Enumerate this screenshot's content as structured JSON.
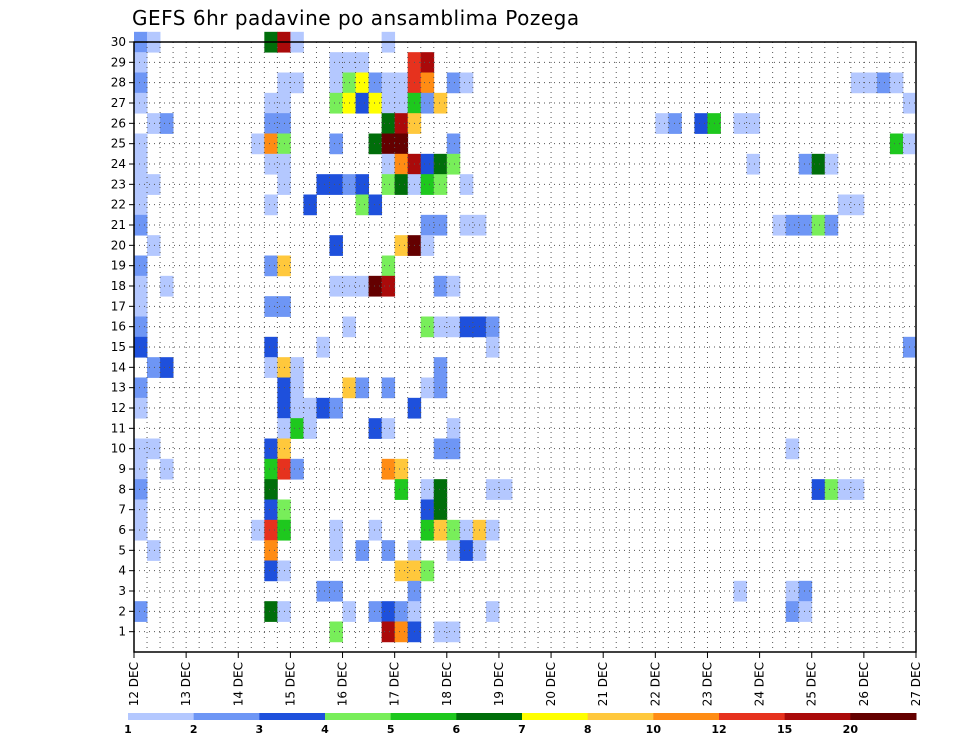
{
  "chart_data": {
    "type": "heatmap",
    "title": "GEFS 6hr padavine po ansamblima Pozega",
    "x_tick_labels": [
      "12 DEC",
      "13 DEC",
      "14 DEC",
      "15 DEC",
      "16 DEC",
      "17 DEC",
      "18 DEC",
      "19 DEC",
      "20 DEC",
      "21 DEC",
      "22 DEC",
      "23 DEC",
      "24 DEC",
      "25 DEC",
      "26 DEC",
      "27 DEC"
    ],
    "y_tick_labels": [
      "1",
      "2",
      "3",
      "4",
      "5",
      "6",
      "7",
      "8",
      "9",
      "10",
      "11",
      "12",
      "13",
      "14",
      "15",
      "16",
      "17",
      "18",
      "19",
      "20",
      "21",
      "22",
      "23",
      "24",
      "25",
      "26",
      "27",
      "28",
      "29",
      "30"
    ],
    "x_steps_6h": 60,
    "y_members": [
      0,
      30
    ],
    "grid": true,
    "legend_position": "bottom",
    "colorbar": {
      "labels": [
        "1",
        "2",
        "3",
        "4",
        "5",
        "6",
        "7",
        "8",
        "10",
        "12",
        "15",
        "20"
      ],
      "colors": [
        "#b4c8ff",
        "#6e96f5",
        "#1e50dc",
        "#78ee5a",
        "#1ec81e",
        "#006e0a",
        "#ffff00",
        "#ffc83c",
        "#ff8c14",
        "#e6321e",
        "#aa0a0a",
        "#640000"
      ]
    },
    "cells": [
      [
        0,
        30,
        2
      ],
      [
        1,
        30,
        1
      ],
      [
        10,
        30,
        6
      ],
      [
        11,
        30,
        11
      ],
      [
        12,
        30,
        1
      ],
      [
        19,
        30,
        1
      ],
      [
        0,
        29,
        1
      ],
      [
        15,
        29,
        1
      ],
      [
        16,
        29,
        1
      ],
      [
        17,
        29,
        1
      ],
      [
        21,
        29,
        10
      ],
      [
        22,
        29,
        11
      ],
      [
        0,
        28,
        2
      ],
      [
        11,
        28,
        1
      ],
      [
        12,
        28,
        1
      ],
      [
        15,
        28,
        1
      ],
      [
        16,
        28,
        4
      ],
      [
        17,
        28,
        7
      ],
      [
        18,
        28,
        2
      ],
      [
        19,
        28,
        1
      ],
      [
        20,
        28,
        1
      ],
      [
        21,
        28,
        10
      ],
      [
        22,
        28,
        9
      ],
      [
        24,
        28,
        2
      ],
      [
        25,
        28,
        1
      ],
      [
        55,
        28,
        1
      ],
      [
        56,
        28,
        1
      ],
      [
        57,
        28,
        2
      ],
      [
        58,
        28,
        1
      ],
      [
        0,
        27,
        1
      ],
      [
        10,
        27,
        1
      ],
      [
        11,
        27,
        1
      ],
      [
        15,
        27,
        4
      ],
      [
        16,
        27,
        7
      ],
      [
        17,
        27,
        3
      ],
      [
        18,
        27,
        7
      ],
      [
        19,
        27,
        1
      ],
      [
        20,
        27,
        1
      ],
      [
        21,
        27,
        5
      ],
      [
        22,
        27,
        2
      ],
      [
        23,
        27,
        8
      ],
      [
        59,
        27,
        1
      ],
      [
        1,
        26,
        1
      ],
      [
        2,
        26,
        2
      ],
      [
        10,
        26,
        2
      ],
      [
        11,
        26,
        2
      ],
      [
        19,
        26,
        6
      ],
      [
        20,
        26,
        11
      ],
      [
        21,
        26,
        8
      ],
      [
        40,
        26,
        1
      ],
      [
        41,
        26,
        2
      ],
      [
        43,
        26,
        3
      ],
      [
        44,
        26,
        5
      ],
      [
        46,
        26,
        1
      ],
      [
        47,
        26,
        1
      ],
      [
        0,
        25,
        1
      ],
      [
        9,
        25,
        1
      ],
      [
        10,
        25,
        9
      ],
      [
        11,
        25,
        4
      ],
      [
        15,
        25,
        2
      ],
      [
        18,
        25,
        6
      ],
      [
        19,
        25,
        12
      ],
      [
        20,
        25,
        12
      ],
      [
        24,
        25,
        2
      ],
      [
        58,
        25,
        5
      ],
      [
        59,
        25,
        1
      ],
      [
        0,
        24,
        1
      ],
      [
        10,
        24,
        1
      ],
      [
        11,
        24,
        1
      ],
      [
        19,
        24,
        1
      ],
      [
        20,
        24,
        9
      ],
      [
        21,
        24,
        11
      ],
      [
        22,
        24,
        3
      ],
      [
        23,
        24,
        6
      ],
      [
        24,
        24,
        4
      ],
      [
        47,
        24,
        1
      ],
      [
        51,
        24,
        2
      ],
      [
        52,
        24,
        6
      ],
      [
        53,
        24,
        1
      ],
      [
        0,
        23,
        1
      ],
      [
        1,
        23,
        1
      ],
      [
        11,
        23,
        1
      ],
      [
        14,
        23,
        3
      ],
      [
        15,
        23,
        3
      ],
      [
        16,
        23,
        2
      ],
      [
        17,
        23,
        3
      ],
      [
        19,
        23,
        4
      ],
      [
        20,
        23,
        6
      ],
      [
        21,
        23,
        1
      ],
      [
        22,
        23,
        5
      ],
      [
        23,
        23,
        4
      ],
      [
        25,
        23,
        1
      ],
      [
        0,
        22,
        1
      ],
      [
        10,
        22,
        1
      ],
      [
        13,
        22,
        3
      ],
      [
        17,
        22,
        4
      ],
      [
        18,
        22,
        3
      ],
      [
        54,
        22,
        1
      ],
      [
        55,
        22,
        1
      ],
      [
        0,
        21,
        2
      ],
      [
        22,
        21,
        2
      ],
      [
        23,
        21,
        2
      ],
      [
        25,
        21,
        1
      ],
      [
        26,
        21,
        1
      ],
      [
        49,
        21,
        1
      ],
      [
        50,
        21,
        2
      ],
      [
        51,
        21,
        2
      ],
      [
        52,
        21,
        4
      ],
      [
        53,
        21,
        2
      ],
      [
        1,
        20,
        1
      ],
      [
        15,
        20,
        3
      ],
      [
        20,
        20,
        8
      ],
      [
        21,
        20,
        12
      ],
      [
        22,
        20,
        1
      ],
      [
        0,
        19,
        2
      ],
      [
        10,
        19,
        2
      ],
      [
        11,
        19,
        8
      ],
      [
        19,
        19,
        4
      ],
      [
        0,
        18,
        1
      ],
      [
        2,
        18,
        1
      ],
      [
        15,
        18,
        1
      ],
      [
        16,
        18,
        1
      ],
      [
        17,
        18,
        1
      ],
      [
        18,
        18,
        12
      ],
      [
        19,
        18,
        11
      ],
      [
        23,
        18,
        2
      ],
      [
        24,
        18,
        1
      ],
      [
        0,
        17,
        1
      ],
      [
        10,
        17,
        2
      ],
      [
        11,
        17,
        2
      ],
      [
        0,
        16,
        2
      ],
      [
        16,
        16,
        1
      ],
      [
        22,
        16,
        4
      ],
      [
        23,
        16,
        1
      ],
      [
        24,
        16,
        1
      ],
      [
        25,
        16,
        3
      ],
      [
        26,
        16,
        3
      ],
      [
        27,
        16,
        2
      ],
      [
        0,
        15,
        3
      ],
      [
        10,
        15,
        3
      ],
      [
        14,
        15,
        1
      ],
      [
        27,
        15,
        1
      ],
      [
        59,
        15,
        2
      ],
      [
        1,
        14,
        2
      ],
      [
        2,
        14,
        3
      ],
      [
        10,
        14,
        1
      ],
      [
        11,
        14,
        8
      ],
      [
        12,
        14,
        1
      ],
      [
        23,
        14,
        2
      ],
      [
        0,
        13,
        2
      ],
      [
        11,
        13,
        3
      ],
      [
        12,
        13,
        1
      ],
      [
        16,
        13,
        8
      ],
      [
        17,
        13,
        2
      ],
      [
        19,
        13,
        2
      ],
      [
        22,
        13,
        1
      ],
      [
        23,
        13,
        2
      ],
      [
        0,
        12,
        1
      ],
      [
        11,
        12,
        3
      ],
      [
        12,
        12,
        1
      ],
      [
        13,
        12,
        1
      ],
      [
        14,
        12,
        3
      ],
      [
        15,
        12,
        2
      ],
      [
        21,
        12,
        3
      ],
      [
        11,
        11,
        1
      ],
      [
        12,
        11,
        5
      ],
      [
        13,
        11,
        1
      ],
      [
        18,
        11,
        3
      ],
      [
        19,
        11,
        1
      ],
      [
        24,
        11,
        1
      ],
      [
        0,
        10,
        1
      ],
      [
        1,
        10,
        1
      ],
      [
        10,
        10,
        3
      ],
      [
        11,
        10,
        8
      ],
      [
        23,
        10,
        2
      ],
      [
        24,
        10,
        2
      ],
      [
        50,
        10,
        1
      ],
      [
        0,
        9,
        1
      ],
      [
        2,
        9,
        1
      ],
      [
        10,
        9,
        5
      ],
      [
        11,
        9,
        10
      ],
      [
        12,
        9,
        2
      ],
      [
        19,
        9,
        9
      ],
      [
        20,
        9,
        8
      ],
      [
        0,
        8,
        2
      ],
      [
        10,
        8,
        6
      ],
      [
        20,
        8,
        5
      ],
      [
        22,
        8,
        1
      ],
      [
        23,
        8,
        6
      ],
      [
        27,
        8,
        1
      ],
      [
        28,
        8,
        1
      ],
      [
        52,
        8,
        3
      ],
      [
        53,
        8,
        4
      ],
      [
        54,
        8,
        1
      ],
      [
        55,
        8,
        1
      ],
      [
        0,
        7,
        1
      ],
      [
        10,
        7,
        3
      ],
      [
        11,
        7,
        4
      ],
      [
        22,
        7,
        3
      ],
      [
        23,
        7,
        6
      ],
      [
        0,
        6,
        1
      ],
      [
        9,
        6,
        1
      ],
      [
        10,
        6,
        10
      ],
      [
        11,
        6,
        5
      ],
      [
        15,
        6,
        1
      ],
      [
        18,
        6,
        1
      ],
      [
        22,
        6,
        5
      ],
      [
        23,
        6,
        8
      ],
      [
        24,
        6,
        4
      ],
      [
        25,
        6,
        1
      ],
      [
        26,
        6,
        8
      ],
      [
        27,
        6,
        1
      ],
      [
        1,
        5,
        1
      ],
      [
        10,
        5,
        9
      ],
      [
        15,
        5,
        1
      ],
      [
        17,
        5,
        2
      ],
      [
        19,
        5,
        2
      ],
      [
        21,
        5,
        1
      ],
      [
        24,
        5,
        1
      ],
      [
        25,
        5,
        3
      ],
      [
        26,
        5,
        1
      ],
      [
        10,
        4,
        3
      ],
      [
        11,
        4,
        1
      ],
      [
        20,
        4,
        8
      ],
      [
        21,
        4,
        8
      ],
      [
        22,
        4,
        4
      ],
      [
        14,
        3,
        2
      ],
      [
        15,
        3,
        2
      ],
      [
        21,
        3,
        2
      ],
      [
        46,
        3,
        1
      ],
      [
        50,
        3,
        1
      ],
      [
        51,
        3,
        2
      ],
      [
        0,
        2,
        2
      ],
      [
        10,
        2,
        6
      ],
      [
        11,
        2,
        1
      ],
      [
        16,
        2,
        1
      ],
      [
        18,
        2,
        2
      ],
      [
        19,
        2,
        3
      ],
      [
        20,
        2,
        2
      ],
      [
        21,
        2,
        1
      ],
      [
        27,
        2,
        1
      ],
      [
        50,
        2,
        2
      ],
      [
        51,
        2,
        1
      ],
      [
        15,
        1,
        4
      ],
      [
        19,
        1,
        11
      ],
      [
        20,
        1,
        9
      ],
      [
        21,
        1,
        3
      ],
      [
        23,
        1,
        1
      ],
      [
        24,
        1,
        1
      ]
    ]
  }
}
